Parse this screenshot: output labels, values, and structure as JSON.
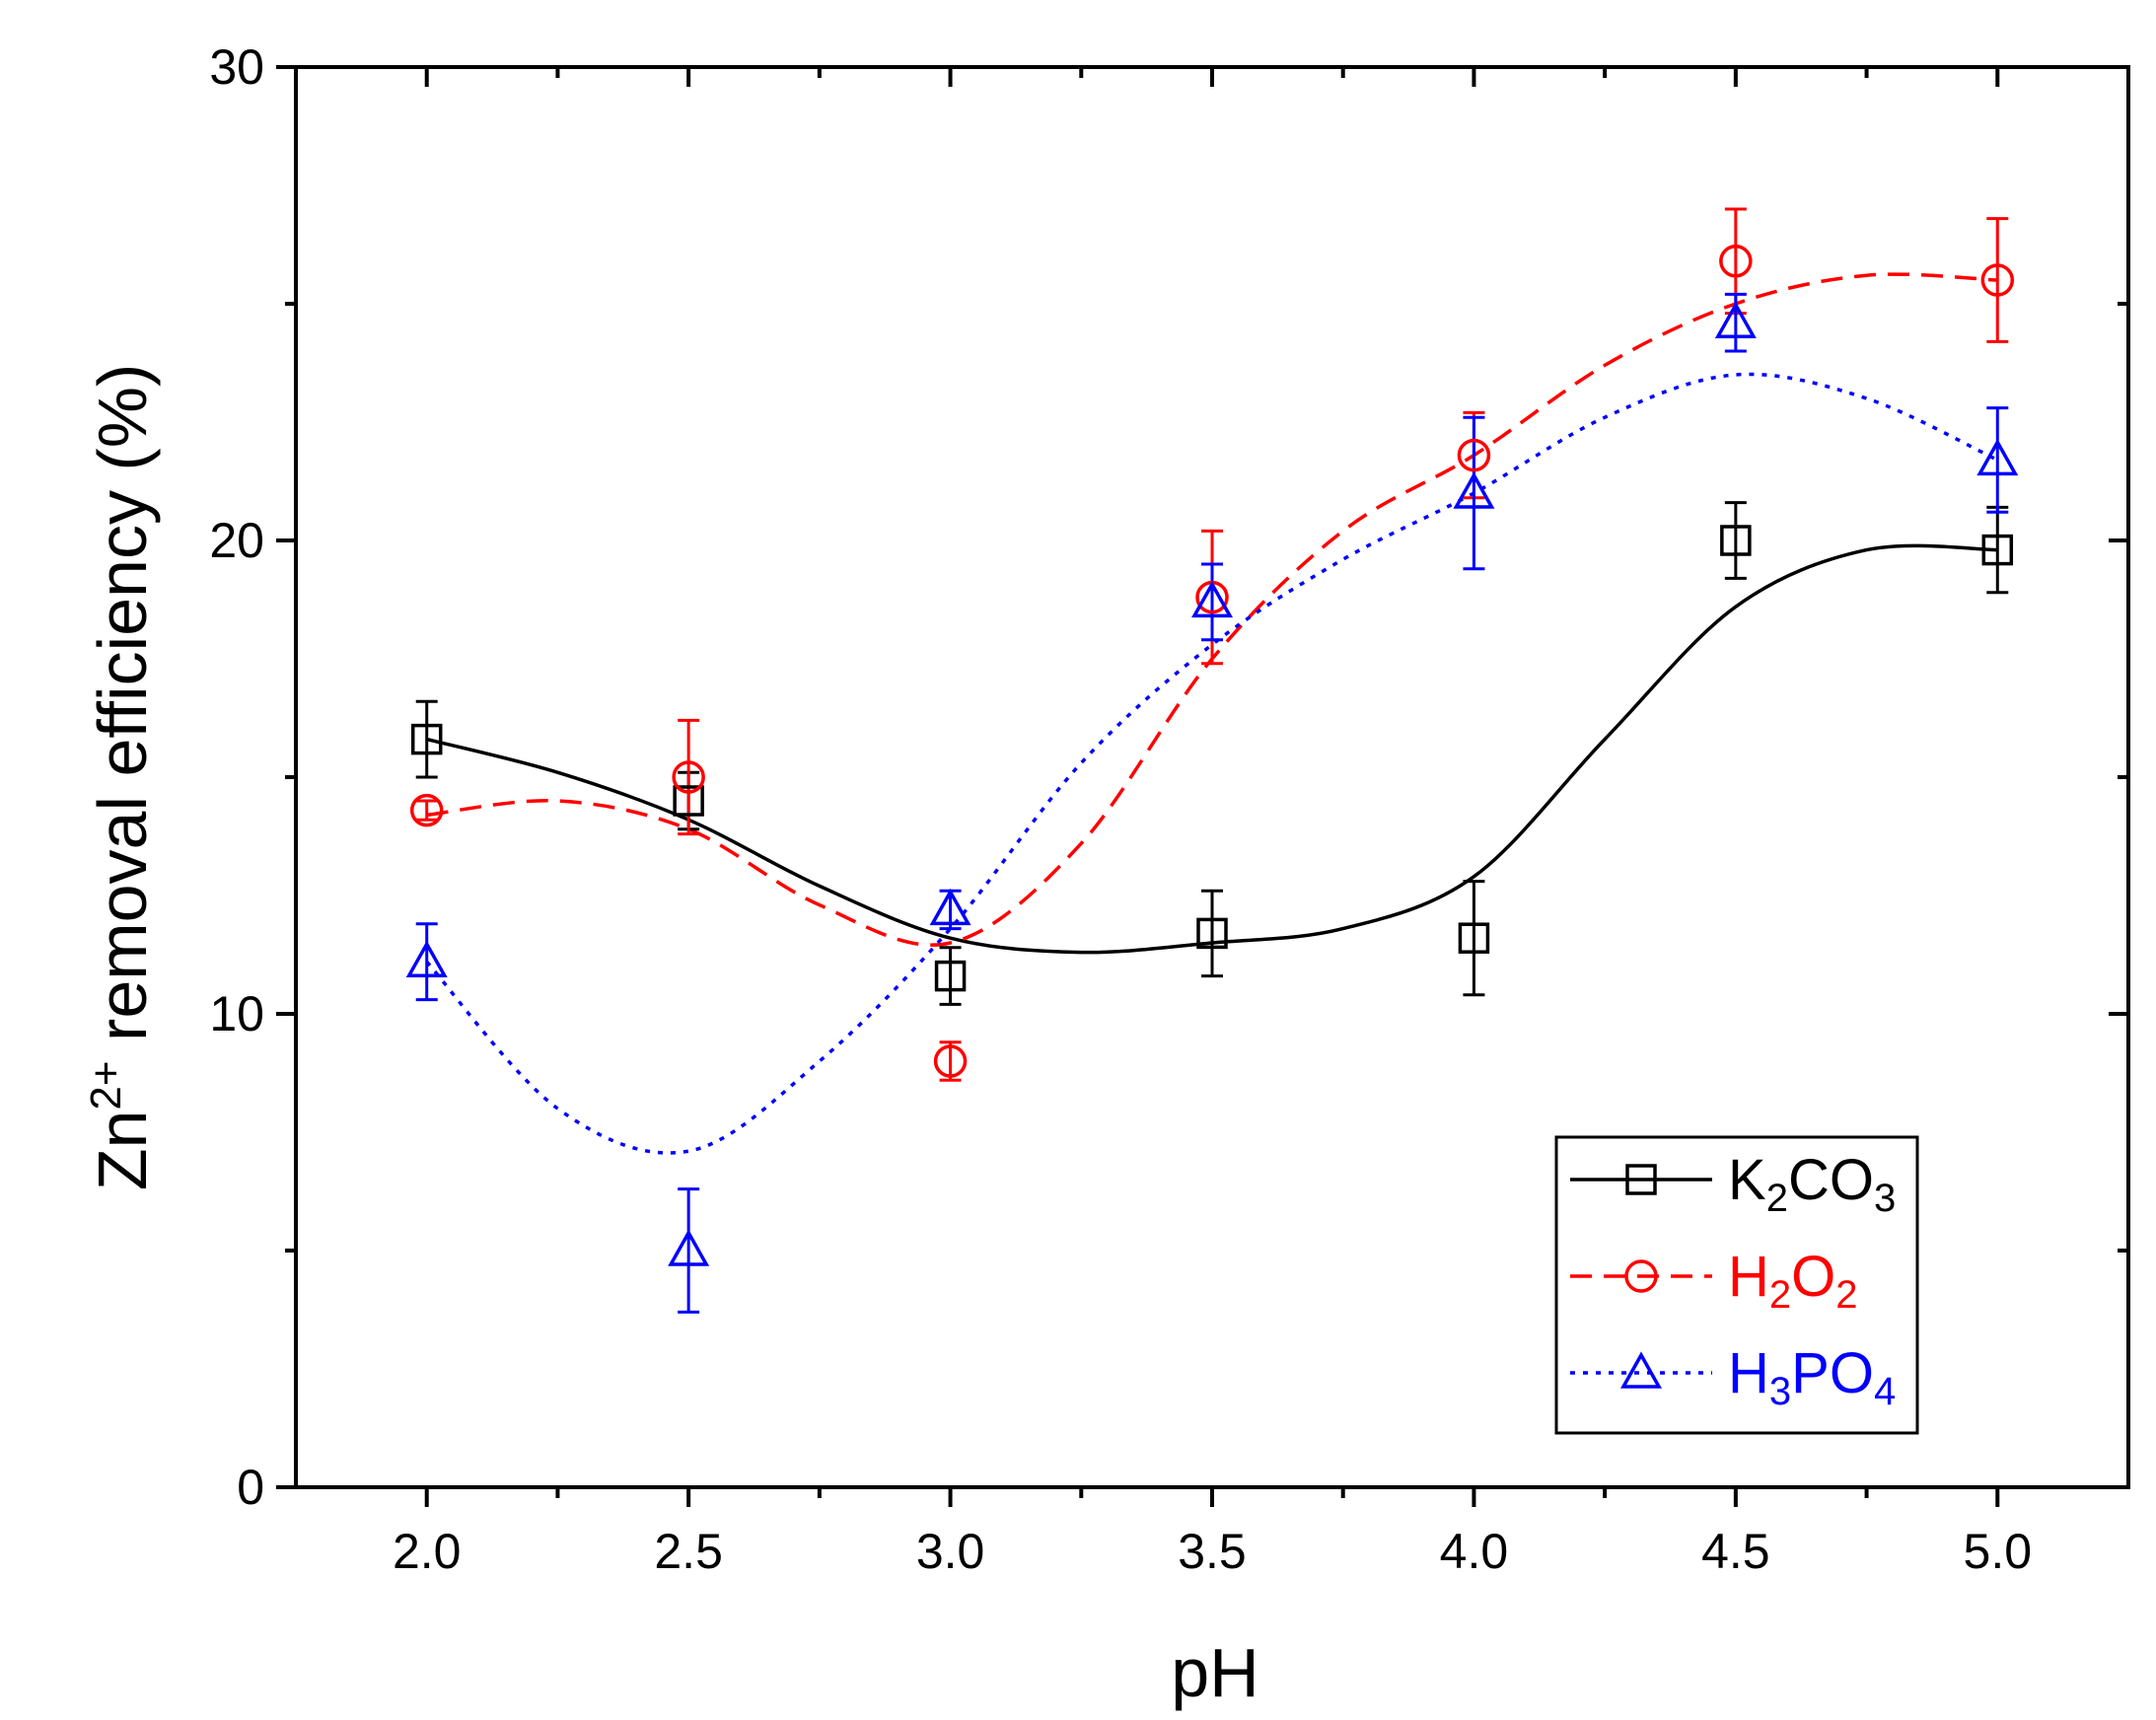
{
  "chart_data": {
    "type": "scatter",
    "title": "",
    "xlabel": "pH",
    "ylabel": {
      "base": "Zn",
      "sup": "2+",
      "rest": " removal efficiency (%)"
    },
    "xlim": [
      1.75,
      5.25
    ],
    "ylim": [
      0,
      30
    ],
    "x_major_ticks": [
      2.0,
      2.5,
      3.0,
      3.5,
      4.0,
      4.5,
      5.0
    ],
    "x_tick_labels": [
      "2.0",
      "2.5",
      "3.0",
      "3.5",
      "4.0",
      "4.5",
      "5.0"
    ],
    "x_minor_ticks": [
      2.25,
      2.75,
      3.25,
      3.75,
      4.25,
      4.75
    ],
    "y_major_ticks": [
      0,
      10,
      20,
      30
    ],
    "y_tick_labels": [
      "0",
      "10",
      "20",
      "30"
    ],
    "y_minor_ticks": [
      5,
      15,
      25
    ],
    "grid": false,
    "legend_position": "bottom-right",
    "series": [
      {
        "name": "K2CO3",
        "label_parts": [
          {
            "t": "K",
            "sub": false
          },
          {
            "t": "2",
            "sub": true
          },
          {
            "t": "CO",
            "sub": false
          },
          {
            "t": "3",
            "sub": true
          }
        ],
        "color": "#000000",
        "marker": "square",
        "line_style": "solid",
        "x": [
          2.0,
          2.5,
          3.0,
          3.5,
          4.0,
          4.5,
          5.0
        ],
        "y": [
          15.8,
          14.5,
          10.8,
          11.7,
          11.6,
          20.0,
          19.8
        ],
        "err": [
          0.8,
          0.6,
          0.6,
          0.9,
          1.2,
          0.8,
          0.9
        ],
        "fit_x": [
          2.0,
          2.25,
          2.5,
          2.75,
          3.0,
          3.25,
          3.5,
          3.75,
          4.0,
          4.25,
          4.5,
          4.75,
          5.0
        ],
        "fit_y": [
          15.8,
          15.1,
          14.1,
          12.7,
          11.6,
          11.3,
          11.5,
          11.8,
          12.9,
          15.8,
          18.6,
          19.8,
          19.8
        ]
      },
      {
        "name": "H2O2",
        "label_parts": [
          {
            "t": "H",
            "sub": false
          },
          {
            "t": "2",
            "sub": true
          },
          {
            "t": "O",
            "sub": false
          },
          {
            "t": "2",
            "sub": true
          }
        ],
        "color": "#ff0000",
        "marker": "circle",
        "line_style": "dashed",
        "x": [
          2.0,
          2.5,
          3.0,
          3.5,
          4.0,
          4.5,
          5.0
        ],
        "y": [
          14.3,
          15.0,
          9.0,
          18.8,
          21.8,
          25.9,
          25.5
        ],
        "err": [
          0.2,
          1.2,
          0.4,
          1.4,
          0.9,
          1.1,
          1.3
        ],
        "fit_x": [
          2.0,
          2.25,
          2.5,
          2.75,
          3.0,
          3.25,
          3.5,
          3.75,
          4.0,
          4.25,
          4.5,
          4.75,
          5.0
        ],
        "fit_y": [
          14.2,
          14.5,
          13.9,
          12.3,
          11.5,
          13.6,
          17.5,
          20.2,
          21.8,
          23.7,
          25.0,
          25.6,
          25.5
        ]
      },
      {
        "name": "H3PO4",
        "label_parts": [
          {
            "t": "H",
            "sub": false
          },
          {
            "t": "3",
            "sub": true
          },
          {
            "t": "PO",
            "sub": false
          },
          {
            "t": "4",
            "sub": true
          }
        ],
        "color": "#0000ff",
        "marker": "triangle",
        "line_style": "dotted",
        "x": [
          2.0,
          2.5,
          3.0,
          3.5,
          4.0,
          4.5,
          5.0
        ],
        "y": [
          11.1,
          5.0,
          12.2,
          18.7,
          21.0,
          24.6,
          21.7
        ],
        "err": [
          0.8,
          1.3,
          0.4,
          0.8,
          1.6,
          0.6,
          1.1
        ],
        "fit_x": [
          2.0,
          2.25,
          2.5,
          2.75,
          3.0,
          3.25,
          3.5,
          3.75,
          4.0,
          4.25,
          4.5,
          4.75,
          5.0
        ],
        "fit_y": [
          11.1,
          8.0,
          7.1,
          9.0,
          11.8,
          15.3,
          17.8,
          19.6,
          21.0,
          22.6,
          23.5,
          23.0,
          21.7
        ]
      }
    ]
  }
}
